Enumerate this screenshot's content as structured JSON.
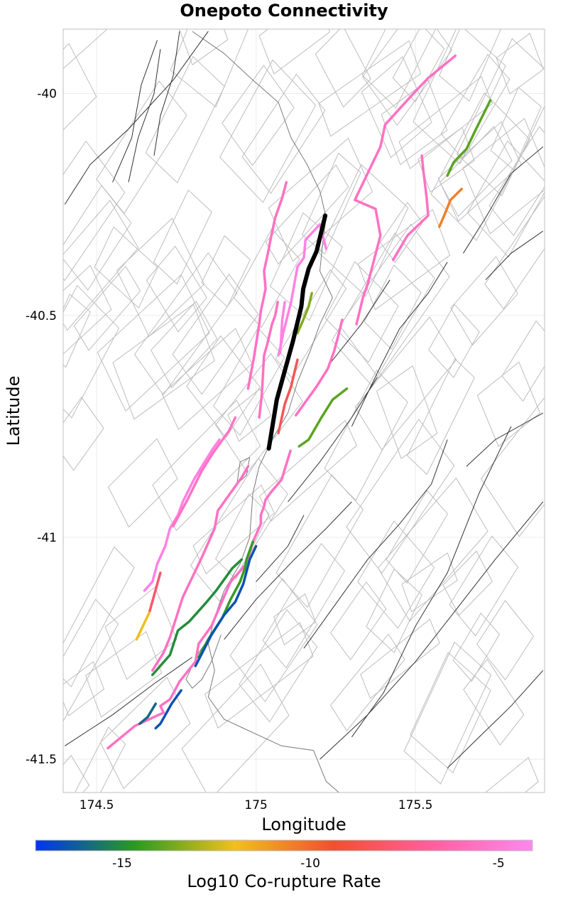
{
  "colors": {
    "rupture_fault": "#000000",
    "background_fault": "#333333",
    "fault_polygon": "#bdbdbd",
    "coastline": "#7a7a7a",
    "gridline": "#ececec",
    "frame": "#bfbfbf"
  },
  "colormap": [
    "#0034f0",
    "#2a9a20",
    "#f0c020",
    "#f05030",
    "#ff60a0",
    "#ff88ee"
  ],
  "chart_data": {
    "type": "map",
    "title": "Onepoto Connectivity",
    "xlabel": "Longitude",
    "ylabel": "Latitude",
    "xlim": [
      174.395,
      175.905
    ],
    "ylim": [
      -41.575,
      -39.855
    ],
    "xticks": [
      174.5,
      175,
      175.5
    ],
    "xtick_labels": [
      "174.5",
      "175",
      "175.5"
    ],
    "yticks": [
      -40,
      -40.5,
      -41,
      -41.5
    ],
    "ytick_labels": [
      "-40",
      "-40.5",
      "-41",
      "-41.5"
    ],
    "colorbar": {
      "label": "Log10 Co-rupture Rate",
      "range": [
        -17.3,
        -4.1
      ],
      "ticks": [
        -15,
        -10,
        -5
      ],
      "tick_labels": [
        "-15",
        "-10",
        "-5"
      ]
    },
    "rupture_fault": {
      "name": "Onepoto",
      "trace": [
        [
          175.217,
          -40.275
        ],
        [
          175.19,
          -40.355
        ],
        [
          175.165,
          -40.395
        ],
        [
          175.148,
          -40.44
        ],
        [
          175.142,
          -40.48
        ],
        [
          175.115,
          -40.56
        ],
        [
          175.065,
          -40.69
        ],
        [
          175.04,
          -40.8
        ]
      ]
    },
    "co_ruptures": [
      {
        "log_rate": -5.6,
        "trace": [
          [
            174.975,
            -40.665
          ],
          [
            174.992,
            -40.6
          ],
          [
            175.01,
            -40.52
          ],
          [
            175.015,
            -40.49
          ],
          [
            175.03,
            -40.44
          ],
          [
            175.025,
            -40.4
          ],
          [
            175.04,
            -40.35
          ],
          [
            175.045,
            -40.33
          ],
          [
            175.06,
            -40.28
          ],
          [
            175.082,
            -40.235
          ],
          [
            175.095,
            -40.2
          ]
        ]
      },
      {
        "log_rate": -4.5,
        "trace": [
          [
            175.07,
            -40.59
          ],
          [
            175.08,
            -40.56
          ],
          [
            175.085,
            -40.54
          ],
          [
            175.11,
            -40.47
          ],
          [
            175.13,
            -40.39
          ],
          [
            175.15,
            -40.37
          ],
          [
            175.155,
            -40.33
          ],
          [
            175.2,
            -40.295
          ],
          [
            175.22,
            -40.35
          ]
        ]
      },
      {
        "log_rate": -5.6,
        "trace": [
          [
            175.01,
            -40.73
          ],
          [
            175.018,
            -40.68
          ],
          [
            175.025,
            -40.59
          ],
          [
            175.035,
            -40.565
          ],
          [
            175.05,
            -40.52
          ],
          [
            175.06,
            -40.5
          ],
          [
            175.068,
            -40.47
          ]
        ]
      },
      {
        "log_rate": -4.5,
        "trace": [
          [
            175.075,
            -40.585
          ],
          [
            175.078,
            -40.56
          ],
          [
            175.082,
            -40.51
          ],
          [
            175.09,
            -40.47
          ]
        ]
      },
      {
        "log_rate": -13.5,
        "trace": [
          [
            175.13,
            -40.54
          ],
          [
            175.148,
            -40.51
          ],
          [
            175.165,
            -40.48
          ],
          [
            175.175,
            -40.45
          ]
        ]
      },
      {
        "log_rate": -8.5,
        "trace": [
          [
            175.07,
            -40.765
          ],
          [
            175.09,
            -40.7
          ],
          [
            175.11,
            -40.66
          ],
          [
            175.13,
            -40.6
          ]
        ]
      },
      {
        "log_rate": -5.6,
        "trace": [
          [
            175.125,
            -40.725
          ],
          [
            175.16,
            -40.69
          ],
          [
            175.19,
            -40.66
          ],
          [
            175.225,
            -40.62
          ],
          [
            175.245,
            -40.58
          ],
          [
            175.26,
            -40.54
          ],
          [
            175.27,
            -40.51
          ]
        ]
      },
      {
        "log_rate": -5.6,
        "trace": [
          [
            175.315,
            -40.52
          ],
          [
            175.335,
            -40.46
          ],
          [
            175.35,
            -40.43
          ],
          [
            175.39,
            -40.32
          ],
          [
            175.375,
            -40.26
          ],
          [
            175.31,
            -40.24
          ],
          [
            175.39,
            -40.12
          ],
          [
            175.405,
            -40.07
          ],
          [
            175.5,
            -39.995
          ],
          [
            175.54,
            -39.965
          ],
          [
            175.625,
            -39.915
          ]
        ]
      },
      {
        "log_rate": -5.6,
        "trace": [
          [
            175.43,
            -40.375
          ],
          [
            175.475,
            -40.32
          ],
          [
            175.54,
            -40.275
          ],
          [
            175.535,
            -40.235
          ],
          [
            175.525,
            -40.175
          ],
          [
            175.52,
            -40.14
          ]
        ]
      },
      {
        "log_rate": -14.0,
        "trace": [
          [
            175.6,
            -40.185
          ],
          [
            175.62,
            -40.155
          ],
          [
            175.66,
            -40.125
          ],
          [
            175.69,
            -40.08
          ],
          [
            175.735,
            -40.015
          ]
        ]
      },
      {
        "log_rate": -10.5,
        "trace": [
          [
            175.575,
            -40.3
          ],
          [
            175.59,
            -40.275
          ],
          [
            175.61,
            -40.24
          ],
          [
            175.645,
            -40.215
          ]
        ]
      },
      {
        "log_rate": -14.0,
        "trace": [
          [
            175.135,
            -40.795
          ],
          [
            175.165,
            -40.78
          ],
          [
            175.205,
            -40.73
          ],
          [
            175.24,
            -40.69
          ],
          [
            175.285,
            -40.665
          ]
        ]
      },
      {
        "log_rate": -5.6,
        "trace": [
          [
            175.108,
            -40.805
          ],
          [
            175.08,
            -40.87
          ],
          [
            175.045,
            -40.9
          ],
          [
            175.03,
            -40.915
          ],
          [
            175.025,
            -40.93
          ],
          [
            175.015,
            -40.95
          ],
          [
            175.015,
            -40.97
          ],
          [
            174.99,
            -41.01
          ],
          [
            174.97,
            -41.06
          ],
          [
            174.92,
            -41.1
          ],
          [
            174.86,
            -41.2
          ],
          [
            174.82,
            -41.24
          ],
          [
            174.81,
            -41.28
          ],
          [
            174.76,
            -41.325
          ],
          [
            174.73,
            -41.365
          ],
          [
            174.7,
            -41.38
          ],
          [
            174.71,
            -41.395
          ],
          [
            174.62,
            -41.425
          ],
          [
            174.535,
            -41.475
          ]
        ]
      },
      {
        "log_rate": -14.5,
        "trace": [
          [
            174.82,
            -41.27
          ],
          [
            174.85,
            -41.23
          ],
          [
            174.895,
            -41.18
          ],
          [
            174.92,
            -41.14
          ],
          [
            174.95,
            -41.1
          ],
          [
            174.965,
            -41.07
          ],
          [
            174.97,
            -41.05
          ],
          [
            174.99,
            -41.01
          ]
        ]
      },
      {
        "log_rate": -16.5,
        "trace": [
          [
            174.765,
            -41.345
          ],
          [
            174.735,
            -41.375
          ],
          [
            174.7,
            -41.42
          ],
          [
            174.685,
            -41.43
          ]
        ]
      },
      {
        "log_rate": -16.5,
        "trace": [
          [
            174.81,
            -41.29
          ],
          [
            174.86,
            -41.22
          ],
          [
            174.9,
            -41.175
          ],
          [
            174.935,
            -41.145
          ],
          [
            174.96,
            -41.105
          ],
          [
            174.98,
            -41.05
          ],
          [
            175,
            -41.02
          ]
        ]
      },
      {
        "log_rate": -16.0,
        "trace": [
          [
            174.635,
            -41.42
          ],
          [
            174.66,
            -41.405
          ],
          [
            174.685,
            -41.375
          ]
        ]
      },
      {
        "log_rate": -15.0,
        "trace": [
          [
            174.675,
            -41.31
          ],
          [
            174.73,
            -41.265
          ],
          [
            174.755,
            -41.21
          ],
          [
            174.79,
            -41.19
          ],
          [
            174.84,
            -41.15
          ],
          [
            174.875,
            -41.12
          ],
          [
            174.925,
            -41.07
          ],
          [
            174.955,
            -41.05
          ]
        ]
      },
      {
        "log_rate": -5.6,
        "trace": [
          [
            174.675,
            -41.3
          ],
          [
            174.71,
            -41.26
          ],
          [
            174.73,
            -41.225
          ],
          [
            174.77,
            -41.135
          ],
          [
            174.83,
            -41.045
          ],
          [
            174.87,
            -40.98
          ],
          [
            174.88,
            -40.94
          ],
          [
            174.92,
            -40.9
          ],
          [
            174.955,
            -40.865
          ],
          [
            174.975,
            -40.84
          ]
        ]
      },
      {
        "log_rate": -4.5,
        "trace": [
          [
            174.65,
            -41.12
          ],
          [
            174.675,
            -41.1
          ],
          [
            174.69,
            -41.06
          ],
          [
            174.715,
            -41.02
          ],
          [
            174.73,
            -40.98
          ],
          [
            174.755,
            -40.95
          ],
          [
            174.77,
            -40.92
          ],
          [
            174.805,
            -40.87
          ],
          [
            174.83,
            -40.84
          ],
          [
            174.865,
            -40.8
          ],
          [
            174.885,
            -40.78
          ]
        ]
      },
      {
        "log_rate": -5.5,
        "trace": [
          [
            174.74,
            -40.975
          ],
          [
            174.785,
            -40.915
          ],
          [
            174.83,
            -40.85
          ],
          [
            174.865,
            -40.81
          ],
          [
            174.915,
            -40.76
          ],
          [
            174.935,
            -40.73
          ]
        ]
      },
      {
        "log_rate": -8.0,
        "trace": [
          [
            174.7,
            -41.08
          ],
          [
            174.665,
            -41.17
          ]
        ]
      },
      {
        "log_rate": -12.0,
        "trace": [
          [
            174.665,
            -41.17
          ],
          [
            174.625,
            -41.23
          ]
        ]
      }
    ]
  }
}
